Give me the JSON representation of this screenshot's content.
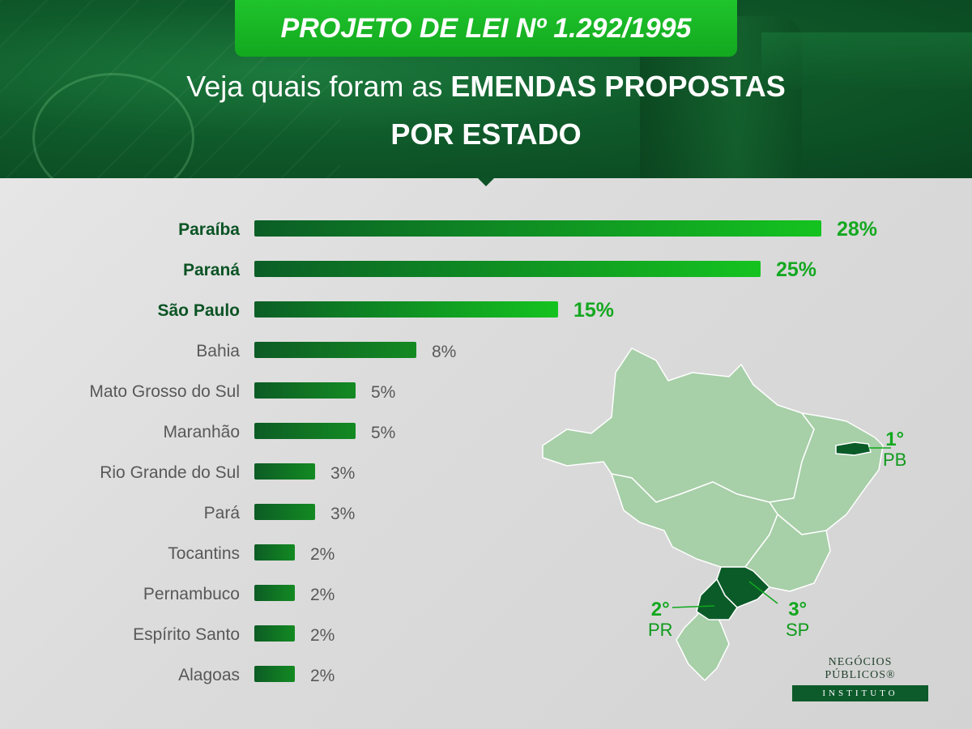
{
  "header": {
    "title": "PROJETO DE LEI Nº 1.292/1995",
    "subtitle_light": "Veja quais foram as",
    "subtitle_bold": "EMENDAS PROPOSTAS",
    "subtitle_line2": "POR ESTADO"
  },
  "colors": {
    "bar_highlight": "#0fb31e",
    "bar_dark": "#0c6a26",
    "label_highlight": "#0c5425",
    "label_normal": "#585858",
    "value_highlight": "#14a820",
    "value_normal": "#585858",
    "map_fill": "#a7cfa8",
    "map_highlight": "#0b5b28"
  },
  "chart_data": {
    "type": "bar",
    "orientation": "horizontal",
    "categories": [
      "Paraíba",
      "Paraná",
      "São Paulo",
      "Bahia",
      "Mato Grosso do Sul",
      "Maranhão",
      "Rio Grande do Sul",
      "Pará",
      "Tocantins",
      "Pernambuco",
      "Espírito Santo",
      "Alagoas"
    ],
    "values": [
      28,
      25,
      15,
      8,
      5,
      5,
      3,
      3,
      2,
      2,
      2,
      2
    ],
    "value_labels": [
      "28%",
      "25%",
      "15%",
      "8%",
      "5%",
      "5%",
      "3%",
      "3%",
      "2%",
      "2%",
      "2%",
      "2%"
    ],
    "highlighted": [
      true,
      true,
      true,
      false,
      false,
      false,
      false,
      false,
      false,
      false,
      false,
      false
    ],
    "unit": "%",
    "xlim": [
      0,
      28
    ],
    "grid": false,
    "legend": "none"
  },
  "map": {
    "rankings": [
      {
        "rank": "1°",
        "state": "PB"
      },
      {
        "rank": "2°",
        "state": "PR"
      },
      {
        "rank": "3°",
        "state": "SP"
      }
    ]
  },
  "logo": {
    "name": "NEGÓCIOS PÚBLICOS®",
    "subtitle": "INSTITUTO"
  }
}
